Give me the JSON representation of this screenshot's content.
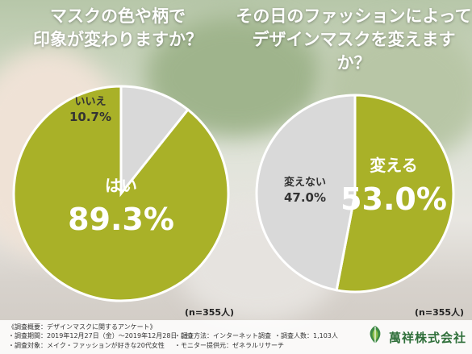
{
  "chart_data": [
    {
      "type": "pie",
      "title": [
        "マスクの色や柄で",
        "印象が変わりますか？"
      ],
      "slices": [
        {
          "label": "はい",
          "value": 89.3,
          "color": "#a9b128"
        },
        {
          "label": "いいえ",
          "value": 10.7,
          "color": "#d9d9d9"
        }
      ],
      "sample": "(n=355人)"
    },
    {
      "type": "pie",
      "title": [
        "その日のファッションによって",
        "デザインマスクを変えますか？"
      ],
      "slices": [
        {
          "label": "変える",
          "value": 53.0,
          "color": "#a9b128"
        },
        {
          "label": "変えない",
          "value": 47.0,
          "color": "#d9d9d9"
        }
      ],
      "sample": "(n=355人)"
    }
  ],
  "footer": {
    "overview": "《調査概要：デザインマスクに関するアンケート》",
    "period": "・調査期間：2019年12月27日（金）～2019年12月28日（土）",
    "method": "・調査方法：インターネット調査",
    "count": "・調査人数：1,103人",
    "target": "・調査対象：メイク・ファッションが好きな20代女性",
    "provider": "・モニター提供元：ゼネラルリサーチ"
  },
  "brand": {
    "name": "萬祥株式会社",
    "color": "#2f6f3a"
  }
}
